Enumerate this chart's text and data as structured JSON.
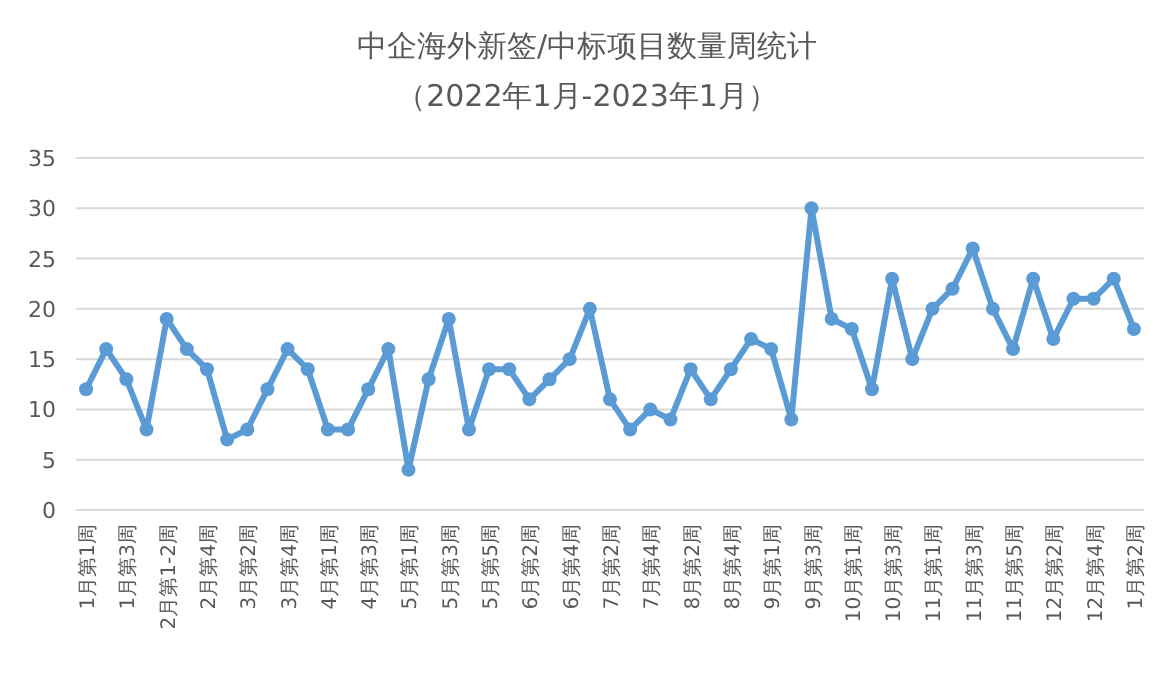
{
  "chart_data": {
    "type": "line",
    "title": "中企海外新签/中标项目数量周统计",
    "subtitle": "（2022年1月-2023年1月）",
    "categories": [
      "1月第1周",
      null,
      "1月第3周",
      null,
      "2月第1-2周",
      null,
      "2月第4周",
      null,
      "3月第2周",
      null,
      "3月第4周",
      null,
      "4月第1周",
      null,
      "4月第3周",
      null,
      "5月第1周",
      null,
      "5月第3周",
      null,
      "5月第5周",
      null,
      "6月第2周",
      null,
      "6月第4周",
      null,
      "7月第2周",
      null,
      "7月第4周",
      null,
      "8月第2周",
      null,
      "8月第4周",
      null,
      "9月第1周",
      null,
      "9月第3周",
      null,
      "10月第1周",
      null,
      "10月第3周",
      null,
      "11月第1周",
      null,
      "11月第3周",
      null,
      "11月第5周",
      null,
      "12月第2周",
      null,
      "12月第4周",
      null,
      "1月第2周"
    ],
    "series": [
      {
        "color": "#5b9bd5",
        "values": [
          12,
          16,
          13,
          8,
          19,
          16,
          14,
          7,
          8,
          12,
          16,
          14,
          8,
          8,
          12,
          16,
          4,
          13,
          19,
          8,
          14,
          14,
          11,
          13,
          15,
          20,
          11,
          8,
          10,
          9,
          14,
          11,
          14,
          17,
          16,
          9,
          30,
          19,
          18,
          12,
          23,
          15,
          20,
          22,
          26,
          20,
          16,
          23,
          17,
          21,
          21,
          23,
          18
        ]
      }
    ],
    "ylim": [
      0,
      35
    ],
    "yticks": [
      0,
      5,
      10,
      15,
      20,
      25,
      30,
      35
    ],
    "grid": "y",
    "marker": "circle",
    "line_style": "solid"
  }
}
